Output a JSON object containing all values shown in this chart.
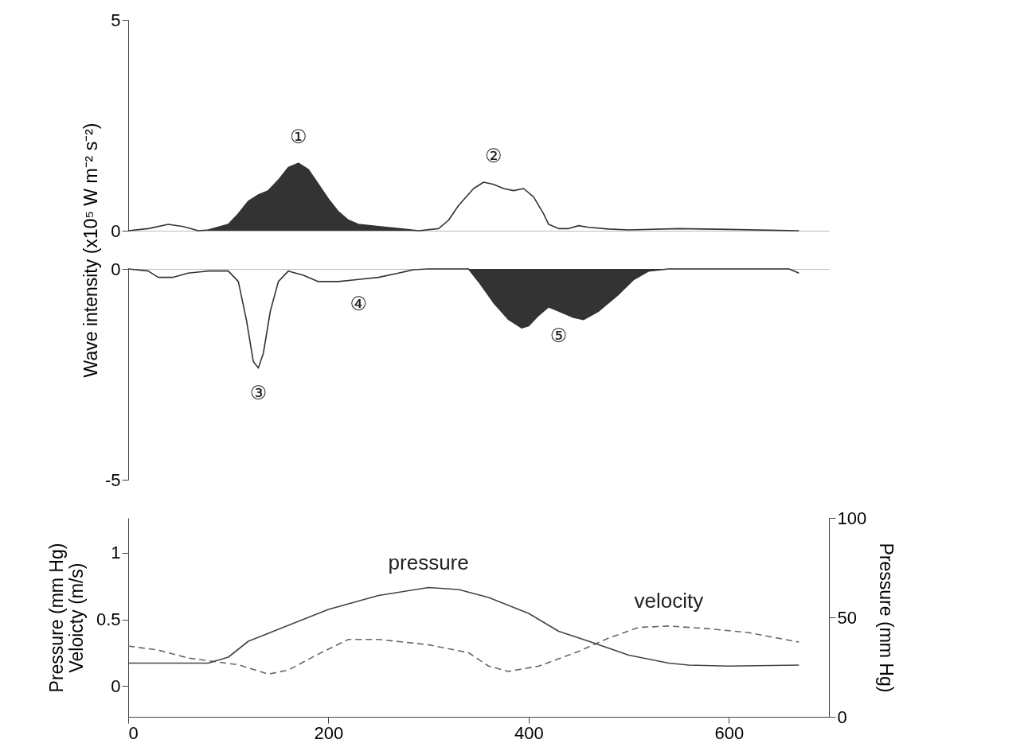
{
  "chart_data": [
    {
      "type": "line",
      "ylabel": "Wave intensity (x10⁵ W m⁻² s⁻²)",
      "xlim": [
        0,
        700
      ],
      "ylim": [
        0,
        5
      ],
      "yticks": [
        0,
        5
      ],
      "tick_labels": "y",
      "series": [
        {
          "color": "#333333",
          "x": [
            0,
            20,
            40,
            55,
            70,
            75,
            80,
            100,
            110,
            120,
            130,
            140,
            150,
            160,
            170,
            180,
            190,
            200,
            210,
            220,
            230,
            250,
            270,
            290,
            310,
            320,
            330,
            345,
            355,
            365,
            375,
            385,
            395,
            405,
            415,
            420,
            430,
            440,
            450,
            460,
            480,
            500,
            550,
            600,
            670
          ],
          "values": [
            0,
            0.05,
            0.15,
            0.1,
            0.0,
            0.01,
            0.02,
            0.15,
            0.4,
            0.7,
            0.85,
            0.95,
            1.2,
            1.5,
            1.6,
            1.45,
            1.1,
            0.75,
            0.45,
            0.25,
            0.15,
            0.1,
            0.05,
            0.0,
            0.05,
            0.25,
            0.6,
            1.0,
            1.15,
            1.1,
            1.0,
            0.95,
            1.0,
            0.8,
            0.4,
            0.15,
            0.05,
            0.05,
            0.12,
            0.08,
            0.04,
            0.02,
            0.05,
            0.03,
            0.0
          ],
          "lower": [
            null,
            null,
            null,
            null,
            null,
            0,
            0,
            0,
            0,
            0,
            0,
            0,
            0,
            0,
            0,
            0,
            0,
            0,
            0,
            0,
            0,
            0,
            0,
            0,
            null,
            null,
            null,
            null,
            null,
            null,
            null,
            null,
            null,
            null,
            null,
            null,
            null,
            null,
            null,
            null,
            null,
            null,
            null,
            null,
            null
          ],
          "upper": [
            null,
            null,
            null,
            null,
            null,
            0.01,
            0.02,
            0.15,
            0.4,
            0.7,
            0.85,
            0.95,
            1.2,
            1.5,
            1.6,
            1.45,
            1.1,
            0.75,
            0.45,
            0.25,
            0.15,
            0.1,
            0.05,
            0.0,
            null,
            null,
            null,
            null,
            null,
            null,
            null,
            null,
            null,
            null,
            null,
            null,
            null,
            null,
            null,
            null,
            null,
            null,
            null,
            null,
            null
          ]
        }
      ],
      "annotations": [
        {
          "text": "①",
          "x": 170,
          "y": 1.6
        },
        {
          "text": "②",
          "x": 365,
          "y": 1.15
        }
      ]
    },
    {
      "type": "line",
      "xlim": [
        0,
        700
      ],
      "ylim": [
        -5,
        0
      ],
      "yticks": [
        -5,
        0
      ],
      "tick_labels": "y",
      "series": [
        {
          "color": "#333333",
          "x": [
            0,
            20,
            30,
            45,
            60,
            80,
            100,
            110,
            118,
            125,
            130,
            135,
            142,
            150,
            160,
            175,
            190,
            210,
            230,
            250,
            270,
            285,
            300,
            340,
            350,
            365,
            380,
            393,
            400,
            410,
            420,
            430,
            445,
            455,
            470,
            490,
            505,
            520,
            540,
            600,
            660,
            670
          ],
          "values": [
            0,
            -0.05,
            -0.2,
            -0.2,
            -0.1,
            -0.05,
            -0.05,
            -0.3,
            -1.2,
            -2.2,
            -2.35,
            -2.0,
            -1.0,
            -0.3,
            -0.05,
            -0.15,
            -0.3,
            -0.3,
            -0.25,
            -0.2,
            -0.1,
            -0.02,
            0,
            0,
            -0.3,
            -0.8,
            -1.2,
            -1.4,
            -1.35,
            -1.1,
            -0.9,
            -1.0,
            -1.15,
            -1.2,
            -1.0,
            -0.6,
            -0.25,
            -0.05,
            0,
            0,
            0,
            -0.1
          ],
          "lower": [
            null,
            null,
            null,
            null,
            null,
            null,
            null,
            null,
            null,
            null,
            null,
            null,
            null,
            null,
            null,
            null,
            null,
            null,
            null,
            null,
            null,
            null,
            null,
            0,
            -0.3,
            -0.8,
            -1.2,
            -1.4,
            -1.35,
            -1.1,
            -0.9,
            -1.0,
            -1.15,
            -1.2,
            -1.0,
            -0.6,
            -0.25,
            -0.05,
            0,
            null,
            null,
            null
          ],
          "upper": [
            null,
            null,
            null,
            null,
            null,
            null,
            null,
            null,
            null,
            null,
            null,
            null,
            null,
            null,
            null,
            null,
            null,
            null,
            null,
            null,
            null,
            null,
            null,
            0,
            0,
            0,
            0,
            0,
            0,
            0,
            0,
            0,
            0,
            0,
            0,
            0,
            0,
            0,
            0,
            null,
            null,
            null
          ]
        }
      ],
      "annotations": [
        {
          "text": "③",
          "x": 130,
          "y": -2.35
        },
        {
          "text": "④",
          "x": 230,
          "y": -0.25
        },
        {
          "text": "⑤",
          "x": 430,
          "y": -1.0
        }
      ]
    },
    {
      "type": "line",
      "ylabel": "Pressure (mm Hg)\nVeloicty (m/s)",
      "y2label": "Pressure (mm Hg)",
      "xlim": [
        0,
        700
      ],
      "xticks": [
        0,
        200,
        400,
        600
      ],
      "ylim": [
        -0.23,
        1.26
      ],
      "yticks": [
        0,
        0.5,
        1
      ],
      "y2lim": [
        0,
        100
      ],
      "y2ticks": [
        0,
        50,
        100
      ],
      "series": [
        {
          "name": "velocity",
          "color": "#666666",
          "line_style": "dashed",
          "x": [
            0,
            30,
            60,
            80,
            110,
            140,
            160,
            190,
            220,
            250,
            300,
            340,
            360,
            380,
            410,
            450,
            480,
            510,
            540,
            580,
            620,
            670
          ],
          "values": [
            0.3,
            0.27,
            0.21,
            0.19,
            0.16,
            0.09,
            0.12,
            0.24,
            0.35,
            0.35,
            0.31,
            0.25,
            0.15,
            0.11,
            0.15,
            0.26,
            0.36,
            0.44,
            0.45,
            0.43,
            0.4,
            0.33
          ]
        },
        {
          "name": "pressure",
          "color": "#444444",
          "line_style": "solid",
          "axis": "y2",
          "x": [
            0,
            50,
            80,
            100,
            120,
            150,
            200,
            250,
            300,
            330,
            360,
            400,
            430,
            460,
            500,
            540,
            560,
            600,
            670
          ],
          "values": [
            27,
            27,
            27,
            30,
            38,
            44,
            54,
            61,
            65,
            64,
            60,
            52,
            43,
            38,
            31,
            27,
            26,
            25.5,
            26
          ]
        }
      ]
    }
  ]
}
